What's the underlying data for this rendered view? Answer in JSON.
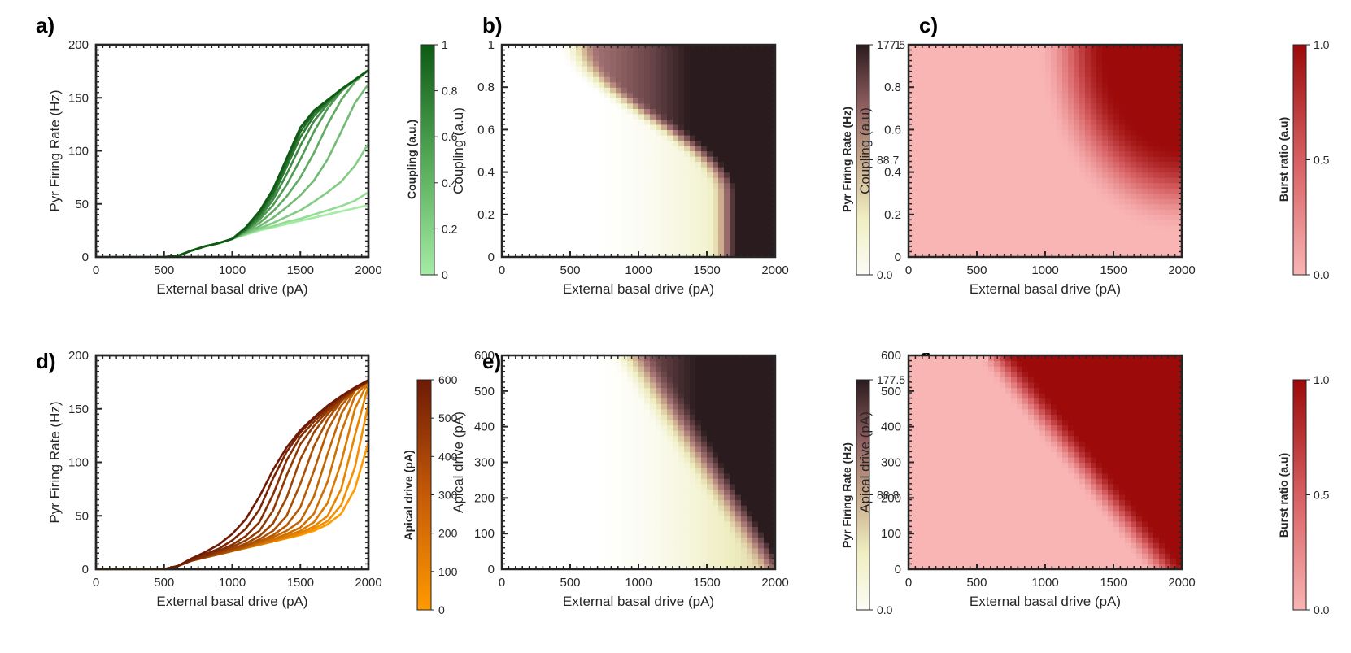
{
  "chart_data": [
    {
      "id": "a",
      "panel_label": "a)",
      "type": "line",
      "xlabel": "External basal drive (pA)",
      "ylabel": "Pyr Firing Rate (Hz)",
      "xlim": [
        0,
        2000
      ],
      "ylim": [
        0,
        200
      ],
      "xticks": [
        "0",
        "500",
        "1000",
        "1500",
        "2000"
      ],
      "yticks": [
        "0",
        "50",
        "100",
        "150",
        "200"
      ],
      "x": [
        500,
        600,
        700,
        800,
        900,
        1000,
        1100,
        1200,
        1300,
        1400,
        1500,
        1600,
        1700,
        1800,
        1900,
        2000
      ],
      "colorbar": {
        "label": "Coupling (a.u.)",
        "min_color": "#9be89b",
        "max_color": "#0e5a14",
        "ticks": [
          "0",
          "0.2",
          "0.4",
          "0.6",
          "0.8",
          "1"
        ]
      },
      "series": [
        {
          "name": "0.1",
          "values": [
            0,
            1,
            6,
            10,
            13,
            17,
            21,
            25,
            28,
            31,
            34,
            37,
            40,
            43,
            46,
            49
          ]
        },
        {
          "name": "0.2",
          "values": [
            0,
            1,
            6,
            10,
            13,
            17,
            22,
            26,
            29,
            33,
            36,
            40,
            44,
            48,
            53,
            61
          ]
        },
        {
          "name": "0.3",
          "values": [
            0,
            1,
            6,
            10,
            13,
            17,
            22,
            27,
            32,
            38,
            44,
            52,
            61,
            71,
            86,
            107
          ]
        },
        {
          "name": "0.4",
          "values": [
            0,
            1,
            6,
            10,
            13,
            17,
            23,
            29,
            37,
            47,
            58,
            72,
            92,
            118,
            145,
            163
          ]
        },
        {
          "name": "0.5",
          "values": [
            0,
            1,
            6,
            10,
            13,
            17,
            24,
            32,
            43,
            57,
            75,
            98,
            125,
            148,
            165,
            176
          ]
        },
        {
          "name": "0.6",
          "values": [
            0,
            1,
            6,
            10,
            13,
            17,
            25,
            35,
            49,
            68,
            92,
            118,
            140,
            156,
            167,
            176
          ]
        },
        {
          "name": "0.7",
          "values": [
            0,
            1,
            6,
            10,
            13,
            17,
            25,
            37,
            54,
            78,
            105,
            128,
            144,
            157,
            167,
            176
          ]
        },
        {
          "name": "0.8",
          "values": [
            0,
            1,
            6,
            10,
            13,
            17,
            26,
            39,
            58,
            85,
            113,
            133,
            146,
            158,
            167,
            176
          ]
        },
        {
          "name": "0.9",
          "values": [
            0,
            1,
            6,
            10,
            13,
            17,
            27,
            41,
            61,
            89,
            118,
            136,
            147,
            158,
            167,
            176
          ]
        },
        {
          "name": "1.0",
          "values": [
            0,
            1,
            6,
            10,
            13,
            17,
            28,
            43,
            64,
            93,
            122,
            138,
            148,
            158,
            167,
            176
          ]
        }
      ]
    },
    {
      "id": "b",
      "panel_label": "b)",
      "type": "heatmap",
      "xlabel": "External basal drive (pA)",
      "ylabel": "Coupling (a.u)",
      "xlim": [
        0,
        2000
      ],
      "ylim": [
        0,
        1
      ],
      "xticks": [
        "0",
        "500",
        "1000",
        "1500",
        "2000"
      ],
      "yticks": [
        "0",
        "0.2",
        "0.4",
        "0.6",
        "0.8",
        "1"
      ],
      "colorbar": {
        "label": "Pyr Firing Rate (Hz)",
        "ticks": [
          "0.0",
          "88.7",
          "177.5"
        ],
        "max": 177.5
      },
      "description": "Firing rate grid: zero below ~650 pA, rising with drive; high-rate region (dark) in upper-right above ~1500 pA and coupling > 0.4"
    },
    {
      "id": "c",
      "panel_label": "c)",
      "type": "heatmap",
      "xlabel": "External basal drive (pA)",
      "ylabel": "Coupling (a.u)",
      "xlim": [
        0,
        2000
      ],
      "ylim": [
        0,
        1
      ],
      "xticks": [
        "0",
        "500",
        "1000",
        "1500",
        "2000"
      ],
      "yticks": [
        "0",
        "0.2",
        "0.4",
        "0.6",
        "0.8",
        "1"
      ],
      "colorbar": {
        "label": "Burst ratio (a.u)",
        "ticks": [
          "0.0",
          "0.5",
          "1.0"
        ],
        "max": 1.0
      }
    },
    {
      "id": "d",
      "panel_label": "d)",
      "type": "line",
      "xlabel": "External basal drive (pA)",
      "ylabel": "Pyr Firing Rate (Hz)",
      "xlim": [
        0,
        2000
      ],
      "ylim": [
        0,
        200
      ],
      "xticks": [
        "0",
        "500",
        "1000",
        "1500",
        "2000"
      ],
      "yticks": [
        "0",
        "50",
        "100",
        "150",
        "200"
      ],
      "x": [
        500,
        600,
        700,
        800,
        900,
        1000,
        1100,
        1200,
        1300,
        1400,
        1500,
        1600,
        1700,
        1800,
        1900,
        2000
      ],
      "colorbar": {
        "label": "Apical drive (pA)",
        "min_color": "#ff9a00",
        "max_color": "#7a1f05",
        "ticks": [
          "0",
          "100",
          "200",
          "300",
          "400",
          "500",
          "600"
        ]
      },
      "series": [
        {
          "name": "0",
          "values": [
            0,
            3,
            8,
            11,
            14,
            17,
            20,
            23,
            26,
            29,
            32,
            36,
            42,
            52,
            75,
            119
          ]
        },
        {
          "name": "50",
          "values": [
            0,
            3,
            8,
            11,
            14,
            17,
            20,
            23,
            26,
            29,
            33,
            38,
            45,
            60,
            95,
            155
          ]
        },
        {
          "name": "100",
          "values": [
            0,
            3,
            8,
            11,
            14,
            17,
            20,
            23,
            26,
            30,
            34,
            40,
            50,
            75,
            125,
            172
          ]
        },
        {
          "name": "150",
          "values": [
            0,
            3,
            8,
            11,
            14,
            17,
            20,
            23,
            27,
            31,
            36,
            44,
            62,
            100,
            150,
            176
          ]
        },
        {
          "name": "200",
          "values": [
            0,
            3,
            8,
            11,
            14,
            17,
            20,
            24,
            28,
            33,
            39,
            52,
            82,
            128,
            162,
            176
          ]
        },
        {
          "name": "250",
          "values": [
            0,
            3,
            8,
            11,
            14,
            17,
            21,
            25,
            30,
            36,
            45,
            68,
            108,
            145,
            167,
            176
          ]
        },
        {
          "name": "300",
          "values": [
            0,
            3,
            8,
            11,
            14,
            17,
            21,
            26,
            32,
            41,
            58,
            92,
            130,
            153,
            168,
            176
          ]
        },
        {
          "name": "350",
          "values": [
            0,
            3,
            8,
            11,
            14,
            18,
            22,
            28,
            36,
            50,
            80,
            115,
            140,
            157,
            168,
            176
          ]
        },
        {
          "name": "400",
          "values": [
            0,
            3,
            8,
            11,
            15,
            19,
            24,
            31,
            43,
            67,
            103,
            128,
            145,
            158,
            168,
            176
          ]
        },
        {
          "name": "450",
          "values": [
            0,
            3,
            8,
            12,
            16,
            21,
            27,
            36,
            55,
            88,
            117,
            134,
            148,
            159,
            168,
            176
          ]
        },
        {
          "name": "500",
          "values": [
            0,
            3,
            8,
            12,
            17,
            23,
            31,
            44,
            70,
            102,
            124,
            138,
            150,
            160,
            169,
            176
          ]
        },
        {
          "name": "550",
          "values": [
            0,
            3,
            9,
            14,
            19,
            27,
            38,
            56,
            85,
            110,
            128,
            141,
            152,
            161,
            169,
            176
          ]
        },
        {
          "name": "600",
          "values": [
            0,
            3,
            10,
            16,
            23,
            33,
            47,
            68,
            93,
            114,
            130,
            142,
            153,
            162,
            170,
            177
          ]
        }
      ]
    },
    {
      "id": "e",
      "panel_label": "e)",
      "type": "heatmap",
      "xlabel": "External basal drive (pA)",
      "ylabel": "Apical drive (pA)",
      "xlim": [
        0,
        2000
      ],
      "ylim": [
        0,
        600
      ],
      "xticks": [
        "0",
        "500",
        "1000",
        "1500",
        "2000"
      ],
      "yticks": [
        "0",
        "100",
        "200",
        "300",
        "400",
        "500",
        "600"
      ],
      "colorbar": {
        "label": "Pyr Firing Rate (Hz)",
        "ticks": [
          "0.0",
          "88.8",
          "177.5"
        ],
        "max": 177.5
      }
    },
    {
      "id": "f",
      "panel_label": "f)",
      "type": "heatmap",
      "xlabel": "External basal drive (pA)",
      "ylabel": "Apical drive (pA)",
      "xlim": [
        0,
        2000
      ],
      "ylim": [
        0,
        600
      ],
      "xticks": [
        "0",
        "500",
        "1000",
        "1500",
        "2000"
      ],
      "yticks": [
        "0",
        "100",
        "200",
        "300",
        "400",
        "500",
        "600"
      ],
      "colorbar": {
        "label": "Burst ratio (a.u)",
        "ticks": [
          "0.0",
          "0.5",
          "1.0"
        ],
        "max": 1.0
      }
    }
  ]
}
